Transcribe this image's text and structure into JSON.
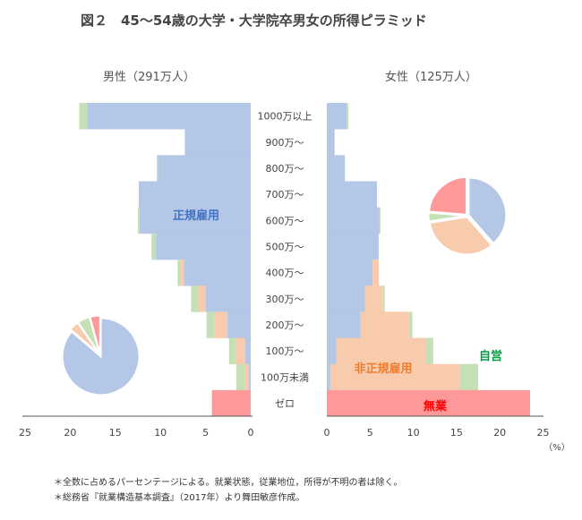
{
  "chart_data": {
    "type": "bar",
    "subtype": "population-pyramid-stacked",
    "title": "図２　45〜54歳の大学・大学院卒男女の所得ピラミッド",
    "categories": [
      "1000万以上",
      "900万〜",
      "800万〜",
      "700万〜",
      "600万〜",
      "500万〜",
      "400万〜",
      "300万〜",
      "200万〜",
      "100万〜",
      "100万未満",
      "ゼロ"
    ],
    "unit_label": "（%）",
    "xlim": [
      0,
      25
    ],
    "x_ticks": [
      25,
      20,
      15,
      10,
      5,
      0
    ],
    "x_ticks_right": [
      0,
      5,
      10,
      15,
      20,
      25
    ],
    "grid": false,
    "series_labels": [
      "正規雇用",
      "非正規雇用",
      "自営",
      "無業"
    ],
    "colors": {
      "正規雇用": "#B4C7E7",
      "非正規雇用": "#F8CBAD",
      "自営": "#C5E0B4",
      "無業": "#FF9999"
    },
    "label_colors": {
      "正規雇用": "#4472C4",
      "非正規雇用": "#ED7D31",
      "自営": "#00A040",
      "無業": "#FF0000"
    },
    "panels": [
      {
        "label": "男性（291万人）",
        "side": "left",
        "series": [
          {
            "name": "正規雇用",
            "values": [
              18.1,
              7.3,
              10.3,
              12.4,
              12.3,
              10.5,
              7.4,
              5.0,
              2.6,
              0.6,
              0.2,
              0
            ]
          },
          {
            "name": "非正規雇用",
            "values": [
              0,
              0,
              0,
              0,
              0,
              0,
              0.4,
              0.8,
              1.4,
              1.1,
              0.5,
              0
            ]
          },
          {
            "name": "自営",
            "values": [
              0.9,
              0,
              0.1,
              0,
              0.2,
              0.5,
              0.3,
              0.8,
              0.9,
              0.7,
              0.9,
              0
            ]
          },
          {
            "name": "無業",
            "values": [
              0,
              0,
              0,
              0,
              0,
              0,
              0,
              0,
              0,
              0,
              0,
              4.3
            ]
          }
        ],
        "pie": [
          86.7,
          4.2,
          5.3,
          4.3
        ]
      },
      {
        "label": "女性（125万人）",
        "side": "right",
        "series": [
          {
            "name": "正規雇用",
            "values": [
              2.3,
              0.9,
              2.1,
              5.8,
              6.1,
              6.0,
              5.3,
              4.4,
              3.9,
              1.1,
              0.4,
              0
            ]
          },
          {
            "name": "非正規雇用",
            "values": [
              0,
              0,
              0,
              0,
              0,
              0,
              0.7,
              2.1,
              5.6,
              10.4,
              15.0,
              0
            ]
          },
          {
            "name": "自営",
            "values": [
              0.2,
              0,
              0,
              0,
              0.1,
              0,
              0,
              0.2,
              0.4,
              0.8,
              2.1,
              0
            ]
          },
          {
            "name": "無業",
            "values": [
              0,
              0,
              0,
              0,
              0,
              0,
              0,
              0,
              0,
              0,
              0,
              23.5
            ]
          }
        ],
        "pie": [
          38.3,
          33.8,
          3.8,
          23.5
        ]
      }
    ]
  },
  "notes": [
    "＊全数に占めるパーセンテージによる。就業状態，従業地位，所得が不明の者は除く。",
    "＊総務省『就業構造基本調査』（2017年）より舞田敏彦作成。"
  ]
}
